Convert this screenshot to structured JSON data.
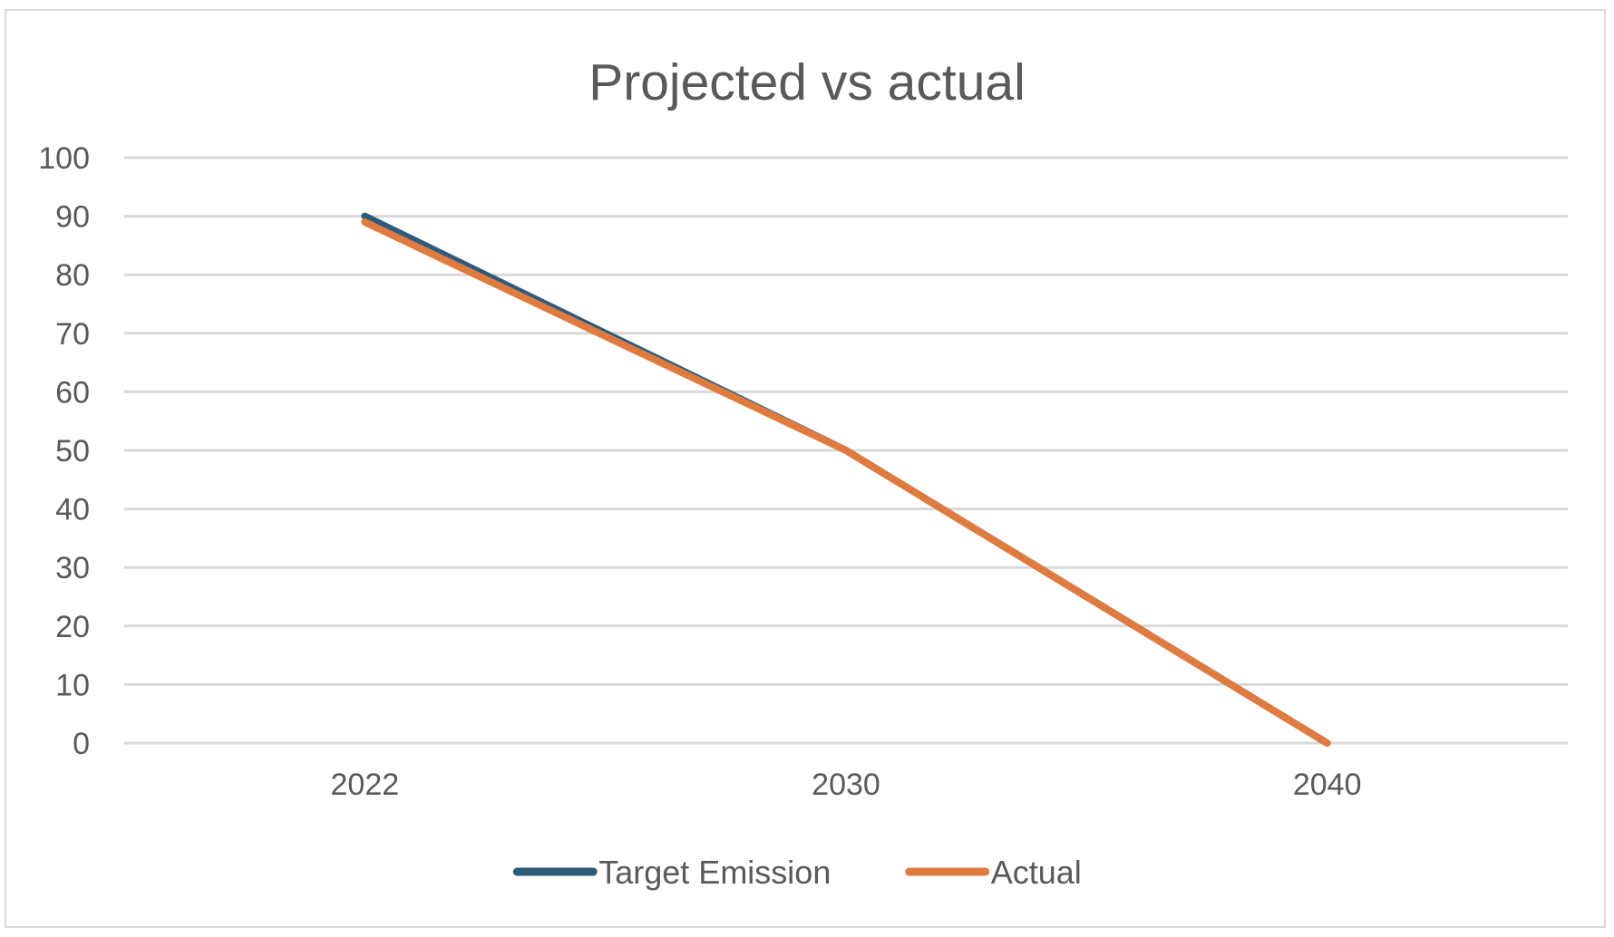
{
  "chart_data": {
    "type": "line",
    "title": "Projected vs actual",
    "xlabel": "",
    "ylabel": "",
    "categories": [
      "2022",
      "2030",
      "2040"
    ],
    "ylim": [
      0,
      100
    ],
    "y_ticks": [
      0,
      10,
      20,
      30,
      40,
      50,
      60,
      70,
      80,
      90,
      100
    ],
    "grid": true,
    "legend_position": "bottom",
    "series": [
      {
        "name": "Target Emission",
        "values": [
          90,
          50,
          0
        ],
        "color": "#2e5a7c"
      },
      {
        "name": "Actual",
        "values": [
          89,
          50,
          0
        ],
        "color": "#e07b40"
      }
    ]
  }
}
